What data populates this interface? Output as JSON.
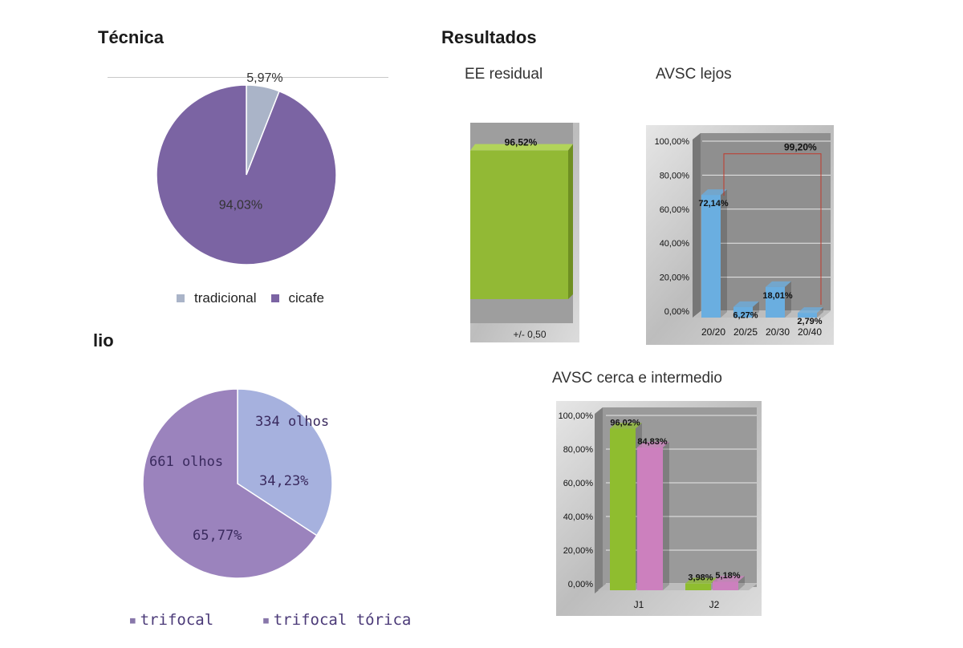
{
  "headings": {
    "tecnica": "Técnica",
    "resultados": "Resultados",
    "lio": "lio",
    "ee_residual": "EE residual",
    "avsc_lejos": "AVSC lejos",
    "avsc_cerca": "AVSC cerca e intermedio"
  },
  "legend_tecnica": {
    "tradicional": "tradicional",
    "cicafe": "cicafe"
  },
  "legend_lio": {
    "trifocal": "trifocal",
    "trifocal_torica": "trifocal tórica"
  },
  "chart_data": [
    {
      "id": "tecnica",
      "type": "pie",
      "slices": [
        {
          "name": "tradicional",
          "value": 5.97,
          "label": "5,97%",
          "color": "#aab4c8"
        },
        {
          "name": "cicafe",
          "value": 94.03,
          "label": "94,03%",
          "color": "#7b64a3"
        }
      ],
      "legend": "bottom"
    },
    {
      "id": "lio",
      "type": "pie",
      "slices": [
        {
          "name": "trifocal",
          "value": 34.23,
          "label": "34,23%",
          "count_label": "334 olhos",
          "color": "#a6b1de"
        },
        {
          "name": "trifocal tórica",
          "value": 65.77,
          "label": "65,77%",
          "count_label": "661 olhos",
          "color": "#9b83bd"
        }
      ],
      "legend": "bottom"
    },
    {
      "id": "ee_residual",
      "type": "bar",
      "categories": [
        "+/- 0,50"
      ],
      "values": [
        96.52
      ],
      "value_labels": [
        "96,52%"
      ],
      "color": "#92b935"
    },
    {
      "id": "avsc_lejos",
      "type": "bar",
      "categories": [
        "20/20",
        "20/25",
        "20/30",
        "20/40"
      ],
      "values": [
        72.14,
        6.27,
        18.01,
        2.79
      ],
      "value_labels": [
        "72,14%",
        "6,27%",
        "18,01%",
        "2,79%"
      ],
      "yticks": [
        "0,00%",
        "20,00%",
        "40,00%",
        "60,00%",
        "80,00%",
        "100,00%"
      ],
      "ylim": [
        0,
        100
      ],
      "grid": true,
      "color": "#6aaee0",
      "annotation": "99,20%"
    },
    {
      "id": "avsc_cerca",
      "type": "bar",
      "categories": [
        "J1",
        "J2"
      ],
      "series": [
        {
          "values": [
            96.02,
            3.98
          ],
          "value_labels": [
            "96,02%",
            "3,98%"
          ],
          "color": "#8fbd2f"
        },
        {
          "values": [
            84.83,
            5.18
          ],
          "value_labels": [
            "84,83%",
            "5,18%"
          ],
          "color": "#cc80be"
        }
      ],
      "yticks": [
        "0,00%",
        "20,00%",
        "40,00%",
        "60,00%",
        "80,00%",
        "100,00%"
      ],
      "ylim": [
        0,
        100
      ],
      "grid": true
    }
  ]
}
